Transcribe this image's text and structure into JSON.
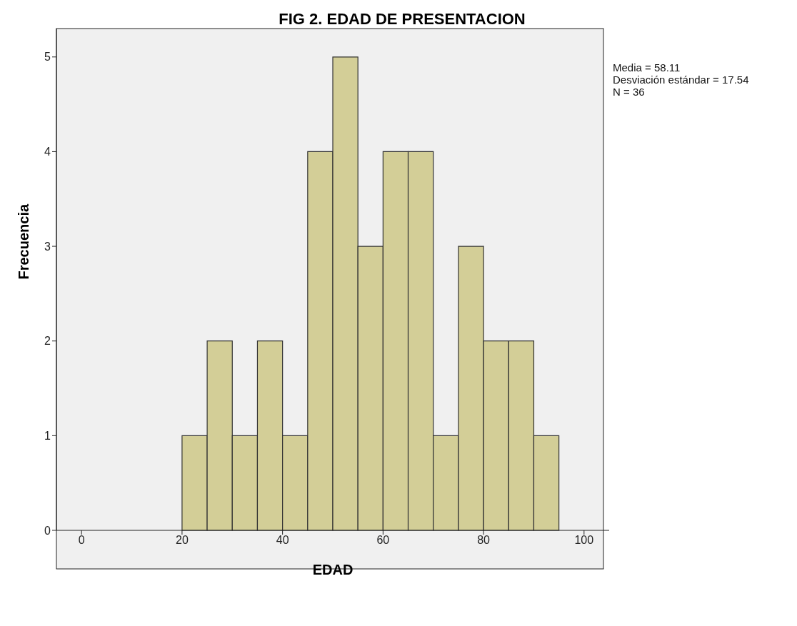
{
  "chart_data": {
    "type": "histogram",
    "title": "FIG 2. EDAD DE PRESENTACION",
    "xlabel": "EDAD",
    "ylabel": "Frecuencia",
    "bins": [
      20,
      25,
      30,
      35,
      40,
      45,
      50,
      55,
      60,
      65,
      70,
      75,
      80,
      85,
      90,
      95
    ],
    "values": [
      1,
      2,
      1,
      2,
      1,
      4,
      5,
      3,
      4,
      4,
      1,
      3,
      2,
      2,
      1
    ],
    "color": "#d3ce97",
    "xlim": [
      -5,
      105
    ],
    "xticks": [
      0,
      20,
      40,
      60,
      80,
      100
    ],
    "ylim": [
      0,
      5.3
    ],
    "yticks": [
      0,
      1,
      2,
      3,
      4,
      5
    ],
    "grid": false,
    "annotations": [
      "Media = 58.11",
      "Desviación estándar = 17.54",
      "N = 36"
    ]
  }
}
